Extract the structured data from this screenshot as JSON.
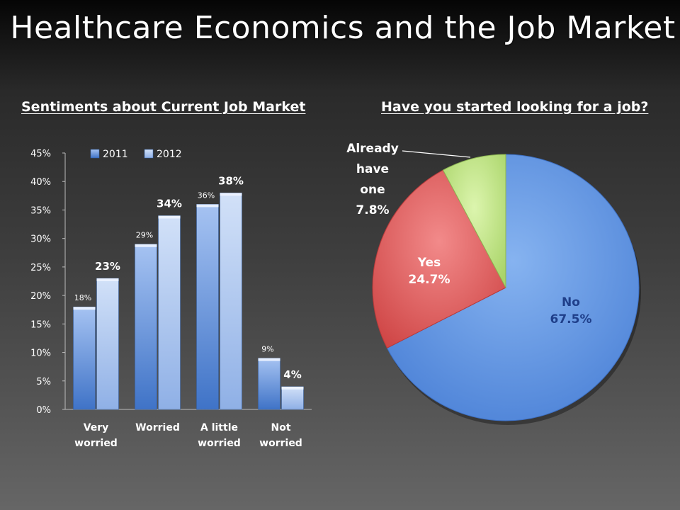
{
  "title": "Healthcare Economics and the Job Market",
  "chart_data": [
    {
      "type": "bar",
      "title": "Sentiments about Current Job Market",
      "categories": [
        [
          "Very",
          "worried"
        ],
        [
          "Worried"
        ],
        [
          "A little",
          "worried"
        ],
        [
          "Not",
          "worried"
        ]
      ],
      "series": [
        {
          "name": "2011",
          "values": [
            18,
            29,
            36,
            9
          ],
          "labels": [
            "18%",
            "29%",
            "36%",
            "9%"
          ],
          "color": "#5b8ed6"
        },
        {
          "name": "2012",
          "values": [
            23,
            34,
            38,
            4
          ],
          "labels": [
            "23%",
            "34%",
            "38%",
            "4%"
          ],
          "color": "#a9c4ef"
        }
      ],
      "y_ticks": [
        "0%",
        "5%",
        "10%",
        "15%",
        "20%",
        "25%",
        "30%",
        "35%",
        "40%",
        "45%"
      ],
      "ylim": [
        0,
        45
      ],
      "legend": "top-left",
      "grid": false
    },
    {
      "type": "pie",
      "title": "Have you started looking for a job?",
      "slices": [
        {
          "label": "No",
          "value": 67.5,
          "text": "67.5%",
          "color": "#6d9ee6",
          "label_color": "#1f3f8a"
        },
        {
          "label": "Yes",
          "value": 24.7,
          "text": "24.7%",
          "color": "#e06464",
          "label_color": "#ffffff"
        },
        {
          "label": "Already have one",
          "lines": [
            "Already",
            "have",
            "one"
          ],
          "value": 7.8,
          "text": "7.8%",
          "color": "#c9ec8e",
          "label_color": "#ffffff"
        }
      ]
    }
  ]
}
